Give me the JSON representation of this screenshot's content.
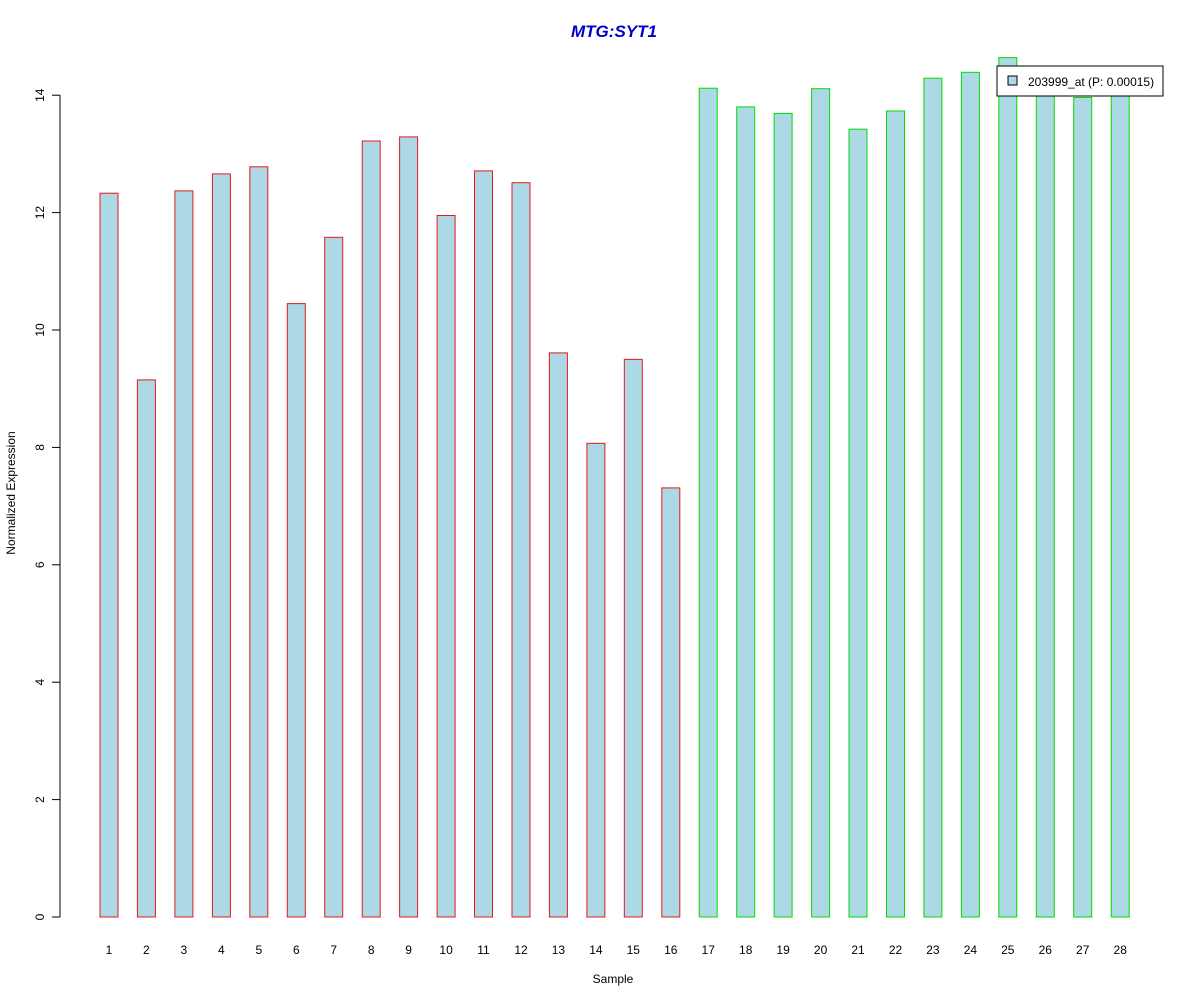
{
  "chart_data": {
    "type": "bar",
    "title": "MTG:SYT1",
    "xlabel": "Sample",
    "ylabel": "Normalized Expression",
    "categories": [
      "1",
      "2",
      "3",
      "4",
      "5",
      "6",
      "7",
      "8",
      "9",
      "10",
      "11",
      "12",
      "13",
      "14",
      "15",
      "16",
      "17",
      "18",
      "19",
      "20",
      "21",
      "22",
      "23",
      "24",
      "25",
      "26",
      "27",
      "28"
    ],
    "series": [
      {
        "name": "203999_at (P: 0.00015)",
        "values": [
          12.33,
          9.15,
          12.37,
          12.66,
          12.78,
          10.45,
          11.58,
          13.22,
          13.29,
          11.95,
          12.71,
          12.51,
          9.61,
          8.07,
          9.5,
          7.31,
          14.12,
          13.8,
          13.69,
          14.11,
          13.42,
          13.73,
          14.29,
          14.39,
          14.64,
          14.12,
          13.96,
          14.1
        ]
      }
    ],
    "ylim": [
      0,
      14.64
    ],
    "yticks": [
      "0",
      "2",
      "4",
      "6",
      "8",
      "10",
      "12",
      "14"
    ],
    "fill_color": "#add8e6",
    "group_border_colors": {
      "1-16": "#e41a1c",
      "17-28": "#00dd00"
    },
    "legend_position": "top-right",
    "grid": false
  }
}
